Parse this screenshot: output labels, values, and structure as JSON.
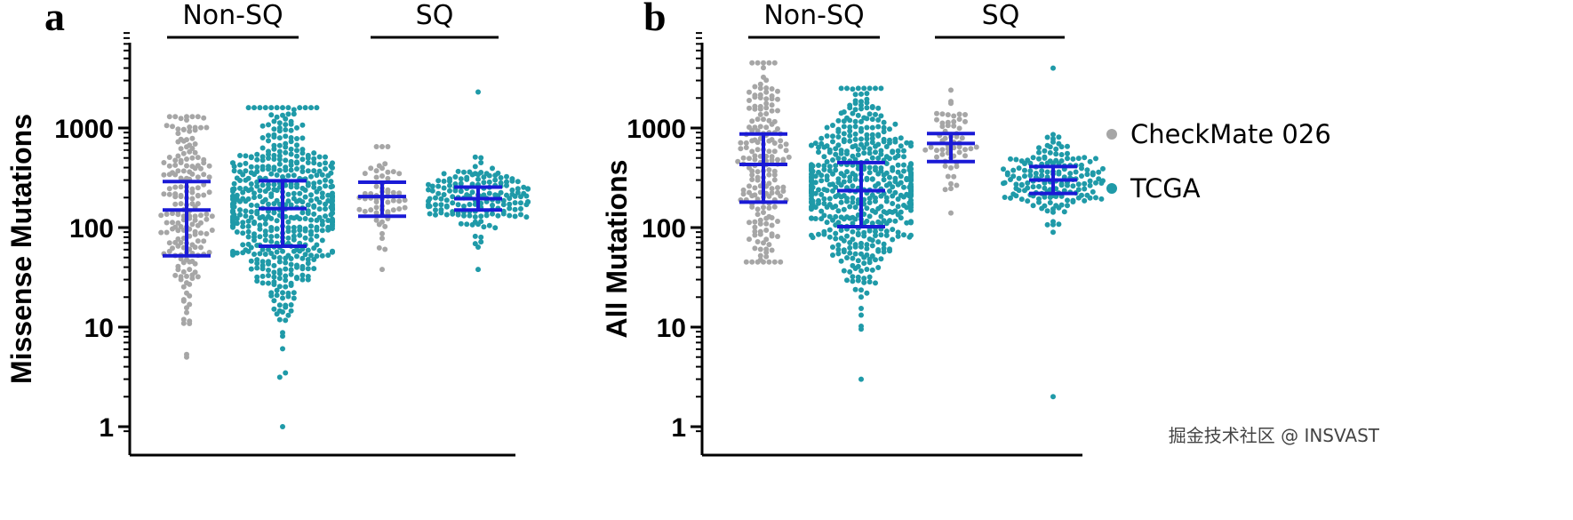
{
  "watermark": "掘金技术社区 @ INSVAST",
  "colors": {
    "checkmate": "#a6a6a6",
    "tcga": "#1f9aa8",
    "errorbar": "#1a1ad6",
    "axis": "#000000"
  },
  "legend": [
    {
      "label": "CheckMate 026",
      "color": "#a6a6a6"
    },
    {
      "label": "TCGA",
      "color": "#1f9aa8"
    }
  ],
  "chart_data": [
    {
      "panel": "a",
      "type": "scatter",
      "ylabel": "Missense Mutations",
      "yscale": "log",
      "ylim": [
        0.8,
        5000
      ],
      "yticks": [
        1,
        10,
        100,
        1000
      ],
      "ytick_labels": [
        "1",
        "10",
        "100",
        "1000"
      ],
      "groups": [
        {
          "label": "Non-SQ",
          "series": [
            "CheckMate 026",
            "TCGA"
          ]
        },
        {
          "label": "SQ",
          "series": [
            "CheckMate 026",
            "TCGA"
          ]
        }
      ],
      "series": [
        {
          "name": "CheckMate 026",
          "group": "Non-SQ",
          "n": 190,
          "median": 150,
          "q1": 52,
          "q3": 290,
          "min": 5,
          "max": 1300
        },
        {
          "name": "TCGA",
          "group": "Non-SQ",
          "n": 520,
          "median": 155,
          "q1": 65,
          "q3": 295,
          "min": 1,
          "max": 1600
        },
        {
          "name": "CheckMate 026",
          "group": "SQ",
          "n": 60,
          "median": 205,
          "q1": 130,
          "q3": 285,
          "min": 38,
          "max": 650
        },
        {
          "name": "TCGA",
          "group": "SQ",
          "n": 170,
          "median": 195,
          "q1": 150,
          "q3": 255,
          "min": 38,
          "max": 2300
        }
      ]
    },
    {
      "panel": "b",
      "type": "scatter",
      "ylabel": "All Mutations",
      "yscale": "log",
      "ylim": [
        0.8,
        5000
      ],
      "yticks": [
        1,
        10,
        100,
        1000
      ],
      "ytick_labels": [
        "1",
        "10",
        "100",
        "1000"
      ],
      "groups": [
        {
          "label": "Non-SQ",
          "series": [
            "CheckMate 026",
            "TCGA"
          ]
        },
        {
          "label": "SQ",
          "series": [
            "CheckMate 026",
            "TCGA"
          ]
        }
      ],
      "series": [
        {
          "name": "CheckMate 026",
          "group": "Non-SQ",
          "n": 190,
          "median": 430,
          "q1": 180,
          "q3": 870,
          "min": 45,
          "max": 4500
        },
        {
          "name": "TCGA",
          "group": "Non-SQ",
          "n": 520,
          "median": 235,
          "q1": 102,
          "q3": 450,
          "min": 3,
          "max": 2500
        },
        {
          "name": "CheckMate 026",
          "group": "SQ",
          "n": 60,
          "median": 700,
          "q1": 460,
          "q3": 880,
          "min": 140,
          "max": 2400
        },
        {
          "name": "TCGA",
          "group": "SQ",
          "n": 170,
          "median": 300,
          "q1": 220,
          "q3": 410,
          "min": 2,
          "max": 4000
        }
      ]
    }
  ]
}
